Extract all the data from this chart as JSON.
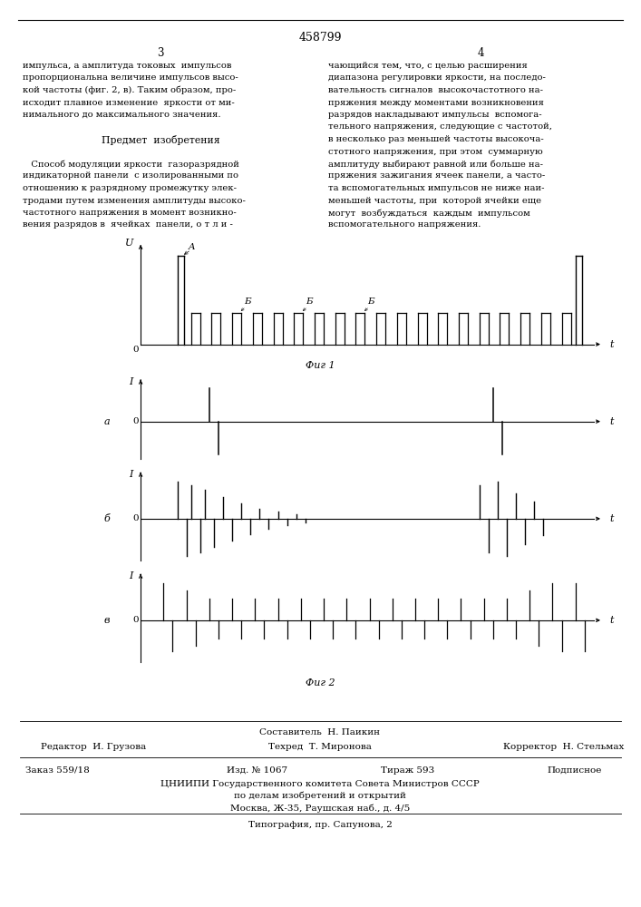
{
  "patent_number": "458799",
  "col3_header": "3",
  "col4_header": "4",
  "col3_text": [
    "импульса, а амплитуда токовых  импульсов",
    "пропорциональна величине импульсов высо-",
    "кой частоты (фиг. 2, в). Таким образом, про-",
    "исходит плавное изменение  яркости от ми-",
    "нимального до максимального значения.",
    "",
    "        Предмет  изобретения",
    "",
    "   Способ модуляции яркости  газоразрядной",
    "индикаторной панели  с изолированными по",
    "отношению к разрядному промежутку элек-",
    "тродами путем изменения амплитуды высоко-",
    "частотного напряжения в момент возникно-",
    "вения разрядов в  ячейках  панели, о т л и -"
  ],
  "col4_text": [
    "чающийся тем, что, с целью расширения",
    "диапазона регулировки яркости, на последо-",
    "вательность сигналов  высокочастотного на-",
    "пряжения между моментами возникновения",
    "разрядов накладывают импульсы  вспомога-",
    "тельного напряжения, следующие с частотой,",
    "в несколько раз меньшей частоты высокоча-",
    "стотного напряжения, при этом  суммарную",
    "амплитуду выбирают равной или больше на-",
    "пряжения зажигания ячеек панели, а часто-",
    "та вспомогательных импульсов не ниже наи-",
    "меньшей частоты, при  которой ячейки еще",
    "могут  возбуждаться  каждым  импульсом",
    "вспомогательного напряжения."
  ],
  "fig1_caption": "Фиг 1",
  "fig2_caption": "Фиг 2",
  "fig1_ylabel": "U",
  "fig2a_ylabel": "I",
  "fig2b_ylabel": "I",
  "fig2c_ylabel": "I",
  "fig2a_label": "а",
  "fig2b_label": "б",
  "fig2c_label": "в",
  "xlabel_t": "t",
  "origin_label": "0",
  "label_A": "A",
  "label_B": "Б",
  "footer_compiler": "Составитель  Н. Паикин",
  "footer_editor": "Редактор  И. Грузова",
  "footer_tech": "Техред  Т. Миронова",
  "footer_corrector": "Корректор  Н. Стельмах",
  "footer_order": "Заказ 559/18",
  "footer_izd": "Изд. № 1067",
  "footer_tirazh": "Тираж 593",
  "footer_podpisnoe": "Подписное",
  "footer_org": "ЦНИИПИ Государственного комитета Совета Министров СССР",
  "footer_dept": "по делам изобретений и открытий",
  "footer_address": "Москва, Ж-35, Раушская наб., д. 4/5",
  "footer_typography": "Типография, пр. Сапунова, 2",
  "bg_color": "#ffffff",
  "text_color": "#000000"
}
